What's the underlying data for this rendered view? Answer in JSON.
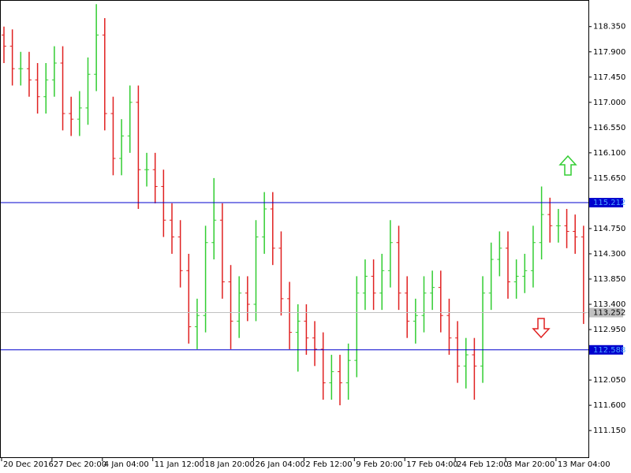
{
  "chart_data": {
    "type": "ohlc",
    "categories": [
      "20 Dec 2016",
      null,
      null,
      null,
      null,
      null,
      "27 Dec 20:00",
      null,
      null,
      null,
      null,
      null,
      "4 Jan 04:00",
      null,
      null,
      null,
      null,
      null,
      "11 Jan 12:00",
      null,
      null,
      null,
      null,
      null,
      "18 Jan 20:00",
      null,
      null,
      null,
      null,
      null,
      "26 Jan 04:00",
      null,
      null,
      null,
      null,
      null,
      "2 Feb 12:00",
      null,
      null,
      null,
      null,
      null,
      "9 Feb 20:00",
      null,
      null,
      null,
      null,
      null,
      "17 Feb 04:00",
      null,
      null,
      null,
      null,
      null,
      "24 Feb 12:00",
      null,
      null,
      null,
      null,
      null,
      "3 Mar 20:00",
      null,
      null,
      null,
      null,
      null,
      "13 Mar 04:00",
      null,
      null,
      null
    ],
    "open": [
      118.2,
      118.0,
      117.6,
      117.6,
      117.4,
      117.1,
      117.4,
      117.7,
      116.8,
      116.7,
      116.9,
      117.5,
      118.2,
      116.8,
      116.0,
      116.4,
      117.0,
      115.8,
      115.8,
      115.5,
      114.9,
      114.6,
      114.0,
      113.0,
      113.2,
      114.5,
      114.9,
      113.8,
      113.1,
      113.6,
      113.4,
      114.6,
      115.1,
      114.4,
      113.5,
      112.9,
      113.1,
      112.8,
      112.6,
      112.0,
      112.2,
      112.0,
      112.4,
      113.6,
      113.9,
      113.6,
      114.0,
      114.5,
      113.6,
      113.1,
      113.2,
      113.6,
      113.7,
      113.2,
      112.8,
      112.3,
      112.5,
      112.3,
      113.6,
      114.2,
      114.4,
      113.8,
      113.9,
      114.0,
      114.5,
      115.0,
      114.8,
      114.8,
      114.7,
      114.6
    ],
    "high": [
      118.35,
      118.3,
      117.9,
      117.9,
      117.7,
      117.7,
      118.0,
      118.0,
      117.1,
      117.2,
      117.8,
      118.75,
      118.5,
      117.1,
      116.7,
      117.3,
      117.3,
      116.1,
      116.1,
      115.8,
      115.2,
      114.9,
      114.3,
      113.5,
      114.8,
      115.65,
      115.2,
      114.1,
      113.9,
      113.9,
      114.9,
      115.4,
      115.4,
      114.7,
      113.8,
      113.4,
      113.4,
      113.1,
      112.9,
      112.5,
      112.5,
      112.7,
      113.9,
      114.2,
      114.2,
      114.3,
      114.9,
      114.8,
      113.9,
      113.5,
      113.9,
      114.0,
      114.0,
      113.5,
      113.1,
      112.8,
      112.8,
      113.9,
      114.5,
      114.7,
      114.7,
      114.2,
      114.3,
      114.8,
      115.5,
      115.3,
      115.1,
      115.1,
      115.0,
      114.8
    ],
    "low": [
      117.7,
      117.3,
      117.3,
      117.1,
      116.8,
      116.8,
      117.1,
      116.5,
      116.4,
      116.4,
      116.6,
      117.2,
      116.5,
      115.7,
      115.7,
      116.1,
      115.1,
      115.5,
      115.2,
      114.6,
      114.3,
      113.7,
      112.7,
      112.6,
      112.9,
      114.2,
      113.5,
      112.6,
      112.8,
      113.1,
      113.1,
      114.3,
      114.1,
      113.2,
      112.6,
      112.2,
      112.5,
      112.3,
      111.7,
      111.7,
      111.6,
      111.7,
      112.1,
      113.3,
      113.3,
      113.3,
      113.7,
      113.3,
      112.8,
      112.7,
      112.9,
      113.3,
      112.9,
      112.5,
      112.0,
      111.9,
      111.7,
      112.0,
      113.3,
      113.9,
      113.5,
      113.5,
      113.6,
      113.7,
      114.2,
      114.5,
      114.5,
      114.4,
      114.3,
      113.05
    ],
    "close": [
      118.0,
      117.6,
      117.6,
      117.4,
      117.1,
      117.4,
      117.7,
      116.8,
      116.7,
      116.9,
      117.5,
      118.2,
      116.8,
      116.0,
      116.4,
      117.0,
      115.8,
      115.8,
      115.5,
      114.9,
      114.6,
      114.0,
      113.0,
      113.2,
      114.5,
      114.9,
      113.8,
      113.1,
      113.6,
      113.4,
      114.6,
      115.1,
      114.4,
      113.5,
      112.9,
      113.1,
      112.8,
      112.6,
      112.0,
      112.2,
      112.0,
      112.4,
      113.6,
      113.9,
      113.6,
      114.0,
      114.5,
      113.6,
      113.1,
      113.2,
      113.6,
      113.7,
      113.2,
      112.8,
      112.3,
      112.5,
      112.3,
      113.6,
      114.2,
      114.4,
      113.8,
      113.9,
      114.0,
      114.5,
      115.0,
      114.8,
      114.8,
      114.7,
      114.6,
      113.25
    ],
    "up_color": "#32cd32",
    "down_color": "#e02020",
    "ylim": [
      110.66,
      118.81
    ],
    "yticks": [
      {
        "value": 118.35,
        "label": "118.350"
      },
      {
        "value": 117.9,
        "label": "117.900"
      },
      {
        "value": 117.45,
        "label": "117.450"
      },
      {
        "value": 117.0,
        "label": "117.000"
      },
      {
        "value": 116.55,
        "label": "116.550"
      },
      {
        "value": 116.1,
        "label": "116.100"
      },
      {
        "value": 115.65,
        "label": "115.650"
      },
      {
        "value": 114.75,
        "label": "114.750"
      },
      {
        "value": 114.3,
        "label": "114.300"
      },
      {
        "value": 113.85,
        "label": "113.850"
      },
      {
        "value": 113.4,
        "label": "113.400"
      },
      {
        "value": 112.95,
        "label": "112.950"
      },
      {
        "value": 112.05,
        "label": "112.050"
      },
      {
        "value": 111.6,
        "label": "111.600"
      },
      {
        "value": 111.15,
        "label": "111.150"
      }
    ],
    "levels": [
      {
        "value": 115.212,
        "color": "#0000cd"
      },
      {
        "value": 112.588,
        "color": "#0000cd"
      }
    ],
    "current_price": {
      "value": 113.252,
      "color": "#c0c0c0"
    }
  }
}
